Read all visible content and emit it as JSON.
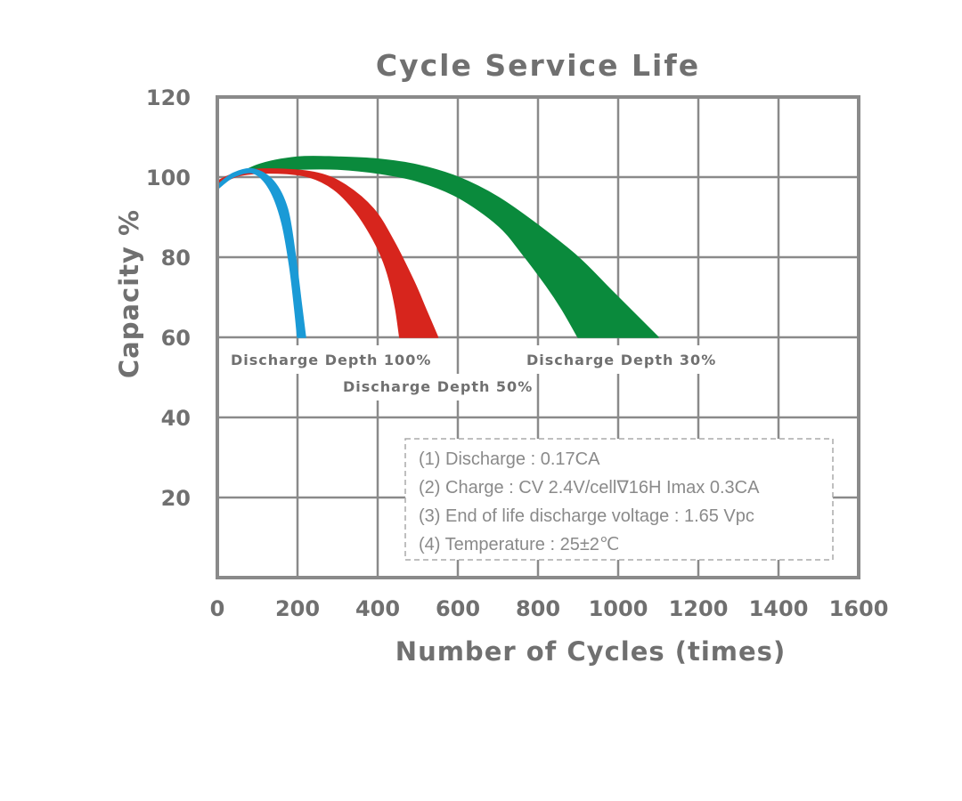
{
  "chart_data": {
    "type": "area",
    "title": "Cycle Service Life",
    "xlabel": "Number of Cycles (times)",
    "ylabel": "Capacity %",
    "xlim": [
      0,
      1600
    ],
    "ylim": [
      0,
      120
    ],
    "x_ticks": [
      "0",
      "200",
      "400",
      "600",
      "800",
      "1000",
      "1200",
      "1400",
      "1600"
    ],
    "y_ticks": [
      "20",
      "40",
      "60",
      "80",
      "100",
      "120"
    ],
    "grid": true,
    "series": [
      {
        "name": "Discharge Depth 100%",
        "color": "#1a9ad6",
        "upper": [
          [
            0,
            98
          ],
          [
            40,
            101
          ],
          [
            90,
            102
          ],
          [
            140,
            99
          ],
          [
            175,
            92
          ],
          [
            195,
            80
          ],
          [
            210,
            68
          ],
          [
            220,
            60
          ]
        ],
        "lower": [
          [
            0,
            97
          ],
          [
            40,
            100
          ],
          [
            90,
            101
          ],
          [
            130,
            97
          ],
          [
            160,
            89
          ],
          [
            180,
            78
          ],
          [
            193,
            67
          ],
          [
            200,
            60
          ]
        ]
      },
      {
        "name": "Discharge Depth 50%",
        "color": "#d7251d",
        "upper": [
          [
            0,
            99
          ],
          [
            60,
            101.5
          ],
          [
            150,
            102
          ],
          [
            250,
            101
          ],
          [
            320,
            98
          ],
          [
            390,
            92
          ],
          [
            440,
            84
          ],
          [
            490,
            74
          ],
          [
            520,
            67
          ],
          [
            550,
            60
          ]
        ],
        "lower": [
          [
            0,
            98
          ],
          [
            60,
            100.5
          ],
          [
            150,
            101
          ],
          [
            230,
            100
          ],
          [
            290,
            97
          ],
          [
            340,
            92
          ],
          [
            380,
            86
          ],
          [
            410,
            80
          ],
          [
            430,
            74
          ],
          [
            445,
            67
          ],
          [
            455,
            60
          ]
        ]
      },
      {
        "name": "Discharge Depth 30%",
        "color": "#0a8a3c",
        "upper": [
          [
            0,
            98
          ],
          [
            100,
            103
          ],
          [
            200,
            105
          ],
          [
            300,
            105
          ],
          [
            400,
            104.5
          ],
          [
            500,
            103
          ],
          [
            600,
            100
          ],
          [
            700,
            95
          ],
          [
            800,
            88
          ],
          [
            900,
            80
          ],
          [
            980,
            72
          ],
          [
            1050,
            65
          ],
          [
            1100,
            60
          ]
        ],
        "lower": [
          [
            0,
            99
          ],
          [
            100,
            101.5
          ],
          [
            200,
            102
          ],
          [
            300,
            102
          ],
          [
            400,
            101
          ],
          [
            500,
            99
          ],
          [
            600,
            95
          ],
          [
            700,
            88
          ],
          [
            760,
            81
          ],
          [
            820,
            73
          ],
          [
            860,
            67
          ],
          [
            900,
            60
          ]
        ]
      }
    ],
    "annotations": [
      "Discharge Depth 100%",
      "Discharge Depth 50%",
      "Discharge Depth 30%"
    ],
    "notes": [
      "(1) Discharge : 0.17CA",
      "(2) Charge : CV 2.4V/cell∇16H Imax 0.3CA",
      "(3) End of life discharge voltage : 1.65 Vpc",
      "(4) Temperature : 25±2℃"
    ]
  }
}
